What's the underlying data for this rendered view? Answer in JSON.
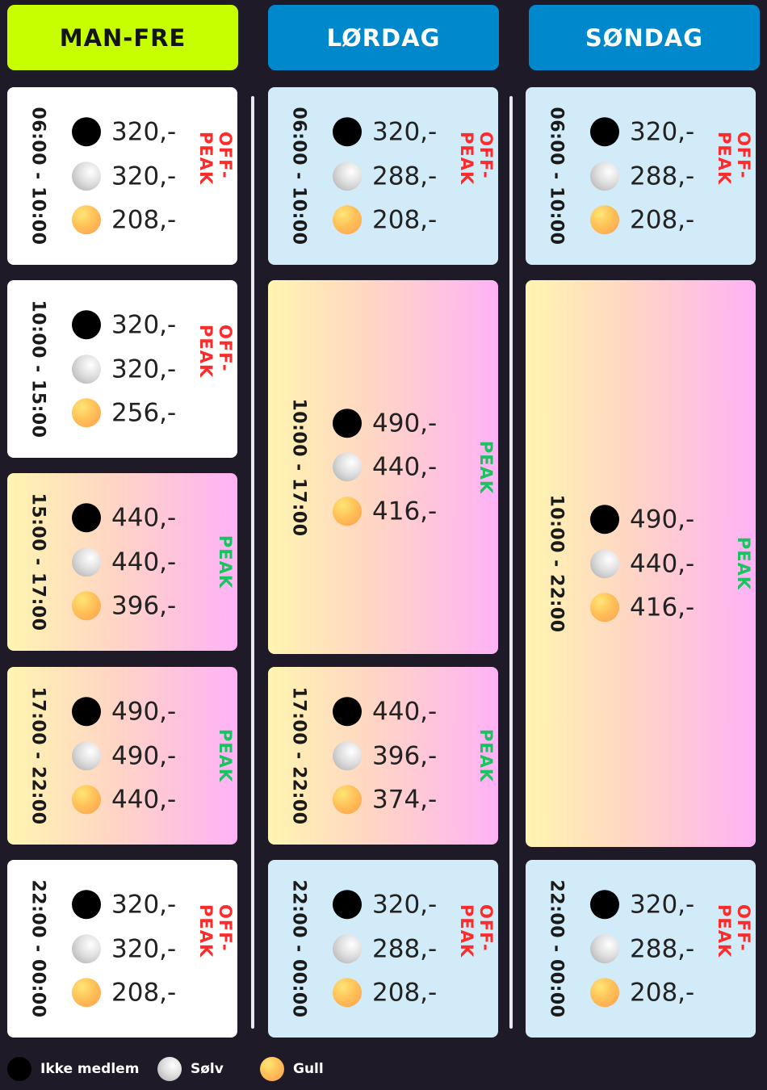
{
  "columns": {
    "manfre": "MAN-FRE",
    "lordag": "LØRDAG",
    "sondag": "SØNDAG"
  },
  "labels": {
    "offpeak": "OFF-PEAK",
    "peak": "PEAK"
  },
  "legend": {
    "ikke": "Ikke medlem",
    "solv": "Sølv",
    "gull": "Gull"
  },
  "manfre": [
    {
      "time": "06:00 - 10:00",
      "type": "OFF-PEAK",
      "prices": [
        "320,-",
        "320,-",
        "208,-"
      ]
    },
    {
      "time": "10:00 - 15:00",
      "type": "OFF-PEAK",
      "prices": [
        "320,-",
        "320,-",
        "256,-"
      ]
    },
    {
      "time": "15:00 - 17:00",
      "type": "PEAK",
      "prices": [
        "440,-",
        "440,-",
        "396,-"
      ]
    },
    {
      "time": "17:00 - 22:00",
      "type": "PEAK",
      "prices": [
        "490,-",
        "490,-",
        "440,-"
      ]
    },
    {
      "time": "22:00 - 00:00",
      "type": "OFF-PEAK",
      "prices": [
        "320,-",
        "320,-",
        "208,-"
      ]
    }
  ],
  "lordag": [
    {
      "time": "06:00 - 10:00",
      "type": "OFF-PEAK",
      "prices": [
        "320,-",
        "288,-",
        "208,-"
      ]
    },
    {
      "time": "10:00 - 17:00",
      "type": "PEAK",
      "prices": [
        "490,-",
        "440,-",
        "416,-"
      ]
    },
    {
      "time": "17:00 - 22:00",
      "type": "PEAK",
      "prices": [
        "440,-",
        "396,-",
        "374,-"
      ]
    },
    {
      "time": "22:00 - 00:00",
      "type": "OFF-PEAK",
      "prices": [
        "320,-",
        "288,-",
        "208,-"
      ]
    }
  ],
  "sondag": [
    {
      "time": "06:00 - 10:00",
      "type": "OFF-PEAK",
      "prices": [
        "320,-",
        "288,-",
        "208,-"
      ]
    },
    {
      "time": "10:00 - 22:00",
      "type": "PEAK",
      "prices": [
        "490,-",
        "440,-",
        "416,-"
      ]
    },
    {
      "time": "22:00 - 00:00",
      "type": "OFF-PEAK",
      "prices": [
        "320,-",
        "288,-",
        "208,-"
      ]
    }
  ],
  "colors": {
    "background": "#1f1a27",
    "weekday_header": "#c7ff00",
    "weekend_header": "#0088cc",
    "offpeak_text": "#ff2a2a",
    "peak_text": "#19c460",
    "weekend_offpeak_card": "#d2ebf9"
  },
  "icons": [
    "black-dot-icon",
    "silver-dot-icon",
    "gold-dot-icon"
  ]
}
